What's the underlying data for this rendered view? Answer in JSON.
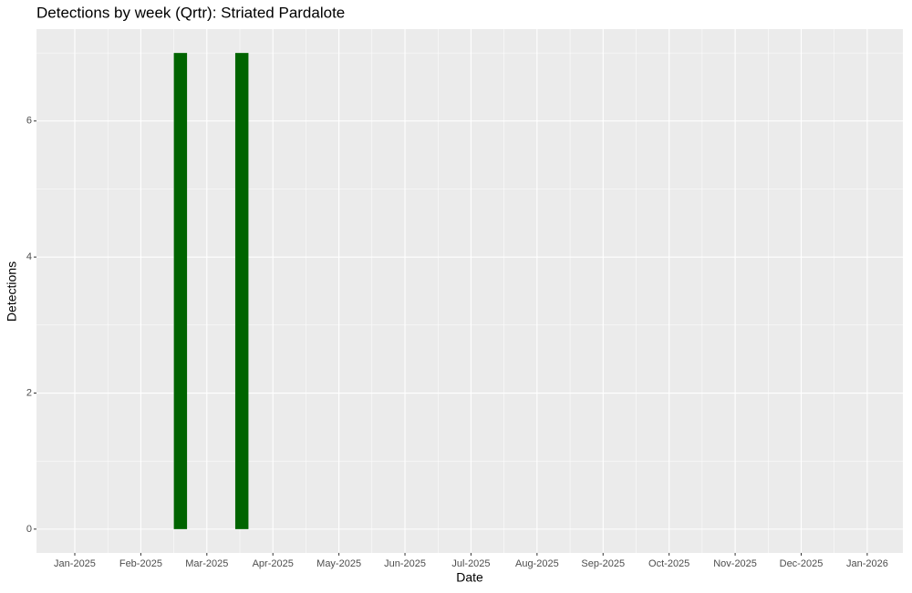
{
  "chart_data": {
    "type": "bar",
    "title": "Detections by week (Qrtr): Striated Pardalote",
    "x_label": "Date",
    "y_label": "Detections",
    "x": [
      1.6,
      2.53
    ],
    "values": [
      7,
      7
    ],
    "color": "#006400",
    "xlim": [
      -0.58,
      12.54
    ],
    "xticks": [
      {
        "value": 0,
        "label": "Jan-2025"
      },
      {
        "value": 1,
        "label": "Feb-2025"
      },
      {
        "value": 2,
        "label": "Mar-2025"
      },
      {
        "value": 3,
        "label": "Apr-2025"
      },
      {
        "value": 4,
        "label": "May-2025"
      },
      {
        "value": 5,
        "label": "Jun-2025"
      },
      {
        "value": 6,
        "label": "Jul-2025"
      },
      {
        "value": 7,
        "label": "Aug-2025"
      },
      {
        "value": 8,
        "label": "Sep-2025"
      },
      {
        "value": 9,
        "label": "Oct-2025"
      },
      {
        "value": 10,
        "label": "Nov-2025"
      },
      {
        "value": 11,
        "label": "Dec-2025"
      },
      {
        "value": 12,
        "label": "Jan-2026"
      }
    ],
    "ylim": [
      -0.35,
      7.35
    ],
    "yticks": [
      0,
      2,
      4,
      6
    ],
    "grid": true
  }
}
